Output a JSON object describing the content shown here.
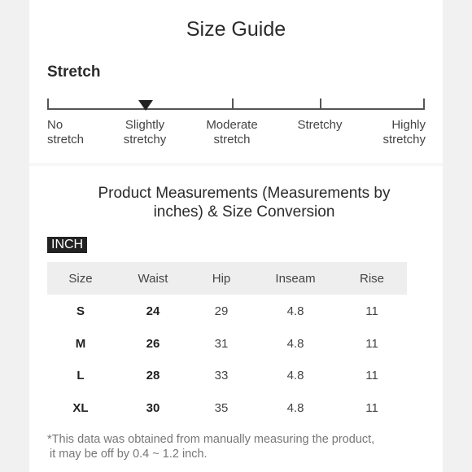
{
  "title": "Size Guide",
  "stretch": {
    "heading": "Stretch",
    "levels": [
      {
        "line1": "No",
        "line2": "stretch"
      },
      {
        "line1": "Slightly",
        "line2": "stretchy"
      },
      {
        "line1": "Moderate",
        "line2": "stretch"
      },
      {
        "line1": "Stretchy",
        "line2": ""
      },
      {
        "line1": "Highly",
        "line2": "stretchy"
      }
    ],
    "selected": "Slightly stretchy"
  },
  "measurements": {
    "title_line1": "Product Measurements (Measurements by",
    "title_line2": "inches) & Size Conversion",
    "unit": "INCH",
    "columns": [
      "Size",
      "Waist",
      "Hip",
      "Inseam",
      "Rise"
    ],
    "rows": [
      [
        "S",
        "24",
        "29",
        "4.8",
        "11"
      ],
      [
        "M",
        "26",
        "31",
        "4.8",
        "11"
      ],
      [
        "L",
        "28",
        "33",
        "4.8",
        "11"
      ],
      [
        "XL",
        "30",
        "35",
        "4.8",
        "11"
      ]
    ]
  },
  "footnote": {
    "line1": "*This data was obtained from manually measuring the product,",
    "line2": "it may be off by 0.4 ~ 1.2 inch."
  }
}
